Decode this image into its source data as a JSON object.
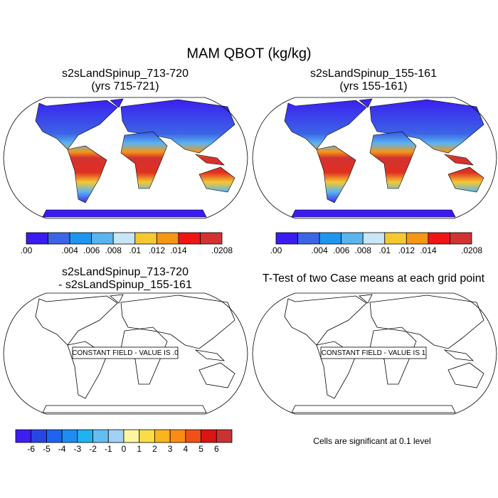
{
  "title": "MAM QBOT (kg/kg)",
  "panels": [
    {
      "title": [
        "s2sLandSpinup_713-720",
        "(yrs 715-721)"
      ]
    },
    {
      "title": [
        "s2sLandSpinup_155-161",
        "(yrs 155-161)"
      ]
    },
    {
      "title": [
        "s2sLandSpinup_713-720",
        "- s2sLandSpinup_155-161"
      ],
      "annotation": "CONSTANT FIELD - VALUE IS .0"
    },
    {
      "title": [
        "T-Test of two Case means at each grid point"
      ],
      "annotation": "CONSTANT FIELD - VALUE IS 1"
    }
  ],
  "colorbars": [
    {
      "colors": [
        "#3a1cf0",
        "#3c64e6",
        "#1e96f0",
        "#5ab4f0",
        "#c8e6f5",
        "#f5c832",
        "#f59614",
        "#f01414",
        "#d23232"
      ],
      "labels": [
        ".00",
        null,
        ".004",
        ".006",
        ".008",
        ".01",
        ".012",
        ".014",
        null,
        ".0208"
      ]
    },
    {
      "colors": [
        "#3a1cf0",
        "#3c64e6",
        "#1e96f0",
        "#5ab4f0",
        "#c8e6f5",
        "#f5c832",
        "#f59614",
        "#f01414",
        "#d23232"
      ],
      "labels": [
        ".00",
        null,
        ".004",
        ".006",
        ".008",
        ".01",
        ".012",
        ".014",
        null,
        ".0208"
      ]
    },
    {
      "colors": [
        "#3c1ef0",
        "#2846e6",
        "#1e64f0",
        "#1e8cf0",
        "#1eb4f0",
        "#64bef0",
        "#a0d2f5",
        "#fff5a0",
        "#fadc46",
        "#fab41e",
        "#fa8c14",
        "#f05014",
        "#dc1414",
        "#c83232"
      ],
      "labels": [
        null,
        "-6",
        "-5",
        "-4",
        "-3",
        "-2",
        "-1",
        "0",
        "1",
        "2",
        "3",
        "4",
        "5",
        "6",
        null
      ]
    }
  ],
  "note": "Cells are significant at 0.1 level"
}
